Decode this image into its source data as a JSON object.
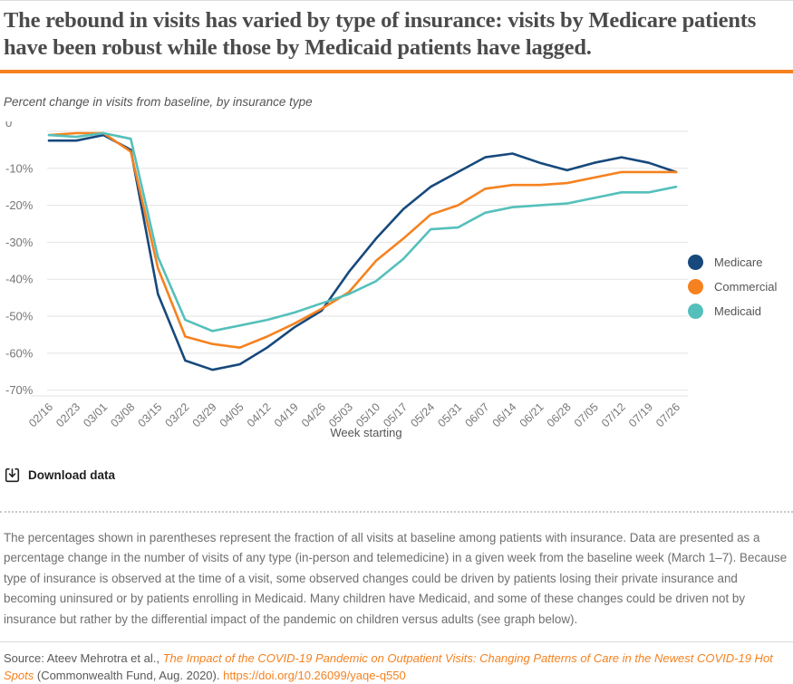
{
  "header": {
    "title": "The rebound in visits has varied by type of insurance: visits by Medicare patients have been robust while those by Medicaid patients have lagged.",
    "subtitle": "Percent change in visits from baseline, by insurance type"
  },
  "chart_data": {
    "type": "line",
    "x": [
      "02/16",
      "02/23",
      "03/01",
      "03/08",
      "03/15",
      "03/22",
      "03/29",
      "04/05",
      "04/12",
      "04/19",
      "04/26",
      "05/03",
      "05/10",
      "05/17",
      "05/24",
      "05/31",
      "06/07",
      "06/14",
      "06/21",
      "06/28",
      "07/05",
      "07/12",
      "07/19",
      "07/26"
    ],
    "series": [
      {
        "name": "Medicare",
        "color": "#17497c",
        "values": [
          -2.5,
          -2.5,
          -1,
          -5,
          -44,
          -62,
          -64.5,
          -63,
          -58.5,
          -53,
          -48.5,
          -38,
          -29,
          -21,
          -15,
          -11,
          -7,
          -6,
          -8.5,
          -10.5,
          -8.5,
          -7,
          -8.5,
          -11
        ]
      },
      {
        "name": "Commercial",
        "color": "#f5821f",
        "values": [
          -1,
          -0.5,
          -0.5,
          -5.5,
          -37,
          -55.5,
          -57.5,
          -58.5,
          -55.5,
          -52,
          -48,
          -43.5,
          -35,
          -29,
          -22.5,
          -20,
          -15.5,
          -14.5,
          -14.5,
          -14,
          -12.5,
          -11,
          -11,
          -11
        ]
      },
      {
        "name": "Medicaid",
        "color": "#55c0bb",
        "values": [
          -1,
          -1.5,
          -0.5,
          -2,
          -34,
          -51,
          -54,
          -52.5,
          -51,
          -49,
          -46.5,
          -44,
          -40.5,
          -34.5,
          -26.5,
          -26,
          -22,
          -20.5,
          -20,
          -19.5,
          -18,
          -16.5,
          -16.5,
          -15
        ]
      }
    ],
    "yticks": [
      "0",
      "-10%",
      "-20%",
      "-30%",
      "-40%",
      "-50%",
      "-60%",
      "-70%"
    ],
    "ylim": [
      -70,
      0
    ],
    "xlabel": "Week starting",
    "grid": "horizontal",
    "legend_position": "right"
  },
  "toolbar": {
    "download_label": "Download data"
  },
  "footnote": {
    "text": "The percentages shown in parentheses represent the fraction of all visits at baseline among patients with insurance. Data are presented as a percentage change in the number of visits of any type (in-person and telemedicine) in a given week from the baseline week (March 1–7). Because type of insurance is observed at the time of a visit, some observed changes could be driven by patients losing their private insurance and becoming uninsured or by patients enrolling in Medicaid. Many children have Medicaid, and some of these changes could be driven not by insurance but rather by the differential impact of the pandemic on children versus adults (see graph below)."
  },
  "source": {
    "prefix": "Source: Ateev Mehrotra et al., ",
    "citation": "The Impact of the COVID-19 Pandemic on Outpatient Visits: Changing Patterns of Care in the Newest COVID-19 Hot Spots",
    "publisher": " (Commonwealth Fund, Aug. 2020). ",
    "link": "https://doi.org/10.26099/yaqe-q550"
  },
  "colors": {
    "accent_orange": "#f5821f",
    "gridline": "#e3e3e3",
    "tick_text": "#777777"
  }
}
